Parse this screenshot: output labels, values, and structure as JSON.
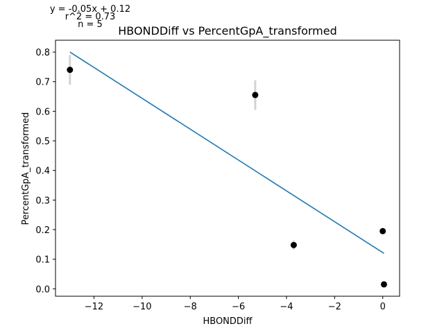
{
  "chart_data": {
    "type": "scatter",
    "title": "HBONDDiff vs PercentGpA_transformed",
    "xlabel": "HBONDDiff",
    "ylabel": "PercentGpA_transformed",
    "annotations": [
      "y = -0.05x + 0.12",
      "r^2 = 0.73",
      "n = 5"
    ],
    "xlim": [
      -13.6,
      0.7
    ],
    "ylim": [
      -0.025,
      0.84
    ],
    "xticks": [
      -12,
      -10,
      -8,
      -6,
      -4,
      -2,
      0
    ],
    "xtick_labels": [
      "−12",
      "−10",
      "−8",
      "−6",
      "−4",
      "−2",
      "0"
    ],
    "yticks": [
      0.0,
      0.1,
      0.2,
      0.3,
      0.4,
      0.5,
      0.6,
      0.7,
      0.8
    ],
    "ytick_labels": [
      "0.0",
      "0.1",
      "0.2",
      "0.3",
      "0.4",
      "0.5",
      "0.6",
      "0.7",
      "0.8"
    ],
    "grid": false,
    "points": [
      {
        "x": -13.0,
        "y": 0.74,
        "err": 0.05
      },
      {
        "x": -5.3,
        "y": 0.655,
        "err": 0.05
      },
      {
        "x": -3.7,
        "y": 0.148,
        "err": 0.015
      },
      {
        "x": 0.0,
        "y": 0.195,
        "err": 0.005
      },
      {
        "x": 0.05,
        "y": 0.015,
        "err": 0.004
      }
    ],
    "fit_line": {
      "x": [
        -13.0,
        0.05
      ],
      "y": [
        0.8,
        0.12
      ]
    },
    "colors": {
      "points": "#000000",
      "error_bars": "#d3d3d3",
      "fit_line": "#1f77b4"
    }
  }
}
